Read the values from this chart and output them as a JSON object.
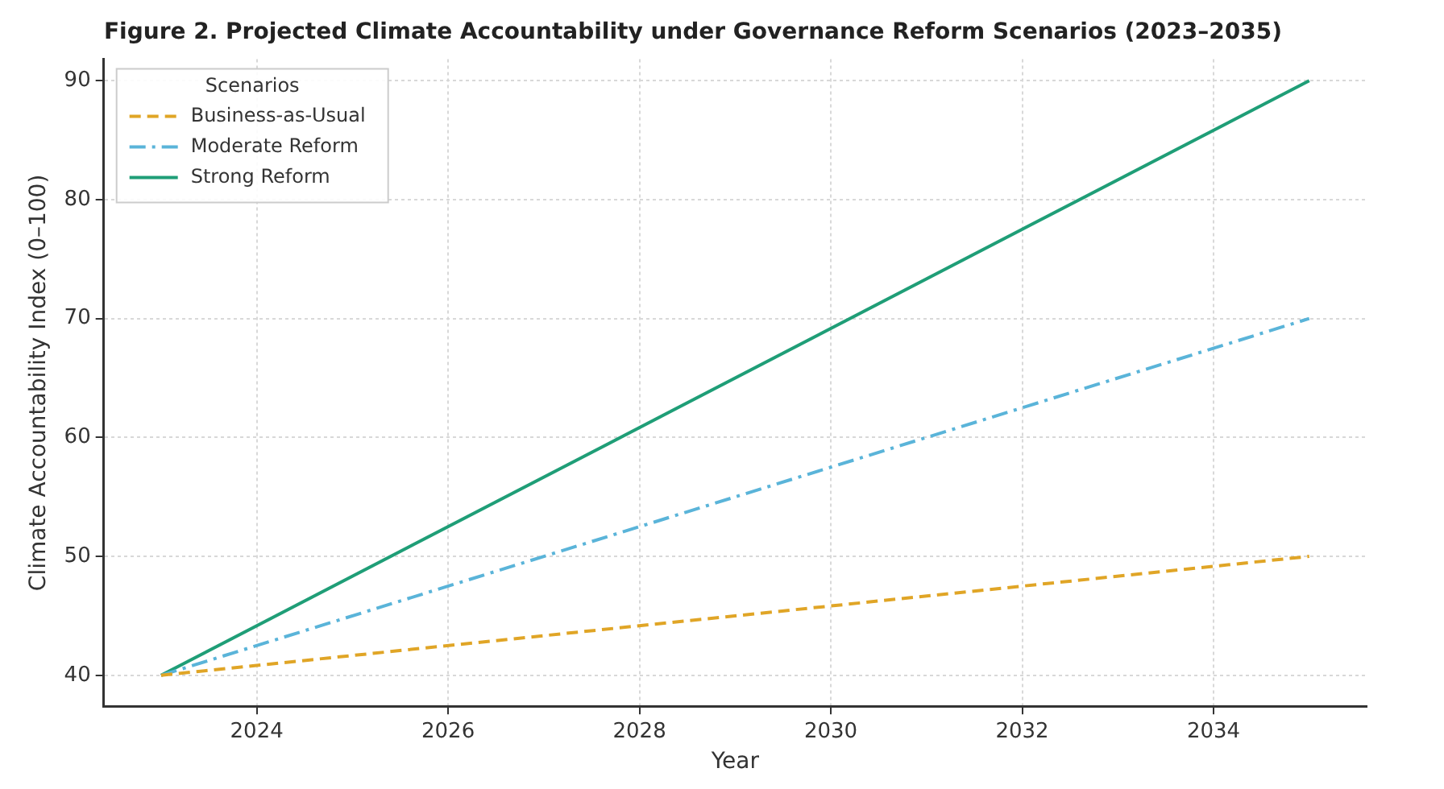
{
  "chart_data": {
    "type": "line",
    "title": "Figure 2. Projected Climate Accountability under Governance Reform Scenarios (2023–2035)",
    "xlabel": "Year",
    "ylabel": "Climate Accountability Index (0–100)",
    "legend_title": "Scenarios",
    "legend": "top left",
    "grid": true,
    "marker": "none",
    "x": [
      2023,
      2035
    ],
    "series": [
      {
        "name": "Business-as-Usual",
        "color": "#e0a526",
        "line_style": "dashed",
        "values": [
          40,
          50
        ]
      },
      {
        "name": "Moderate Reform",
        "color": "#5ab4d9",
        "line_style": "dashdot",
        "values": [
          40,
          70
        ]
      },
      {
        "name": "Strong Reform",
        "color": "#1f9e77",
        "line_style": "solid",
        "values": [
          40,
          90
        ]
      }
    ],
    "xlim": [
      2022.4,
      2035.6
    ],
    "xticks": [
      2024,
      2026,
      2028,
      2030,
      2032,
      2034
    ],
    "ylim": [
      37.4,
      91.8
    ],
    "yticks": [
      40,
      50,
      60,
      70,
      80,
      90
    ]
  }
}
